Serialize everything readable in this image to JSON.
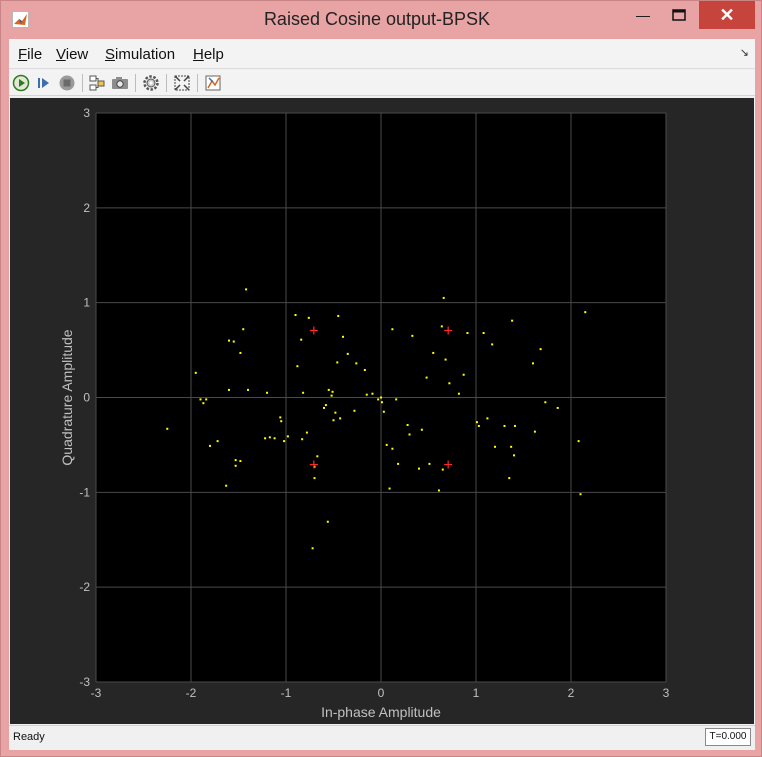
{
  "window": {
    "title": "Raised Cosine output-BPSK",
    "minimize_glyph": "—",
    "close_glyph": "✕"
  },
  "menu": {
    "items": [
      {
        "label": "File",
        "mnemonic": "F"
      },
      {
        "label": "View",
        "mnemonic": "V"
      },
      {
        "label": "Simulation",
        "mnemonic": "S"
      },
      {
        "label": "Help",
        "mnemonic": "H"
      }
    ],
    "overflow_glyph": "↘"
  },
  "toolbar": {
    "icons": [
      "run-icon",
      "step-forward-icon",
      "stop-icon",
      "highlight-block-icon",
      "snapshot-icon",
      "settings-gear-icon",
      "autoscale-icon",
      "signal-selector-icon"
    ]
  },
  "status": {
    "text": "Ready",
    "time": "T=0.000"
  },
  "colors": {
    "plot_bg": "#000000",
    "figure_bg": "#262626",
    "grid": "#4a4a4a",
    "axis_text": "#c0c0c0",
    "signal_points": "#ffff00",
    "reference_points": "#ff2a2a"
  },
  "chart_data": {
    "type": "scatter",
    "title": "",
    "xlabel": "In-phase Amplitude",
    "ylabel": "Quadrature Amplitude",
    "xlim": [
      -3,
      3
    ],
    "ylim": [
      -3,
      3
    ],
    "xticks": [
      "-3",
      "-2",
      "-1",
      "0",
      "1",
      "2",
      "3"
    ],
    "yticks": [
      "3",
      "2",
      "1",
      "0",
      "-1",
      "-2",
      "-3"
    ],
    "grid": true,
    "series": [
      {
        "marker": "dot",
        "x": [
          -1.42,
          -1.45,
          -1.48,
          -1.55,
          -1.53,
          -1.4,
          -1.2,
          -1.22,
          -1.95,
          -2.25,
          -1.9,
          -1.87,
          -1.8,
          -1.84,
          -1.72,
          -1.63,
          -1.6,
          -1.53,
          -1.48,
          -1.17,
          -1.12,
          -1.06,
          -1.05,
          -1.02,
          -0.98,
          -0.9,
          -0.84,
          -0.82,
          -0.78,
          -0.76,
          -0.7,
          -0.88,
          -0.83,
          -0.72,
          -0.67,
          -0.6,
          -0.58,
          -0.55,
          -0.52,
          -0.51,
          -0.48,
          -0.46,
          -0.45,
          -0.43,
          -0.4,
          -0.35,
          -0.28,
          -0.26,
          -0.17,
          -0.15,
          -0.09,
          -0.03,
          0.0,
          0.01,
          0.03,
          0.06,
          0.09,
          0.12,
          0.16,
          0.18,
          0.28,
          0.3,
          0.33,
          0.4,
          0.43,
          0.48,
          0.51,
          0.55,
          0.61,
          0.64,
          0.66,
          0.68,
          0.72,
          0.82,
          0.87,
          0.91,
          1.01,
          1.03,
          1.08,
          1.12,
          1.17,
          1.2,
          1.3,
          1.35,
          1.37,
          1.38,
          1.4,
          1.41,
          1.6,
          1.62,
          1.68,
          1.73,
          1.86,
          2.08,
          2.1,
          2.15,
          -0.56,
          -0.7,
          0.12,
          0.65,
          -0.5,
          -1.6
        ],
        "y": [
          1.14,
          0.72,
          0.47,
          0.59,
          -0.72,
          0.08,
          0.05,
          -0.43,
          0.26,
          -0.33,
          -0.02,
          -0.06,
          -0.51,
          -0.02,
          -0.46,
          -0.93,
          0.08,
          -0.66,
          -0.67,
          -0.42,
          -0.43,
          -0.21,
          -0.25,
          -0.46,
          -0.41,
          0.87,
          0.61,
          0.05,
          -0.37,
          0.84,
          -0.85,
          0.33,
          -0.44,
          -1.59,
          -0.62,
          -0.11,
          -0.08,
          0.08,
          0.02,
          0.06,
          -0.16,
          0.37,
          0.86,
          -0.22,
          0.64,
          0.46,
          -0.14,
          0.36,
          0.29,
          0.03,
          0.04,
          -0.02,
          0.0,
          -0.05,
          -0.15,
          -0.5,
          -0.96,
          0.72,
          -0.02,
          -0.7,
          -0.29,
          -0.39,
          0.65,
          -0.75,
          -0.34,
          0.21,
          -0.7,
          0.47,
          -0.98,
          0.75,
          1.05,
          0.4,
          0.15,
          0.04,
          0.24,
          0.68,
          -0.26,
          -0.3,
          0.68,
          -0.22,
          0.56,
          -0.52,
          -0.3,
          -0.85,
          -0.52,
          0.81,
          -0.61,
          -0.3,
          0.36,
          -0.36,
          0.51,
          -0.05,
          -0.11,
          -0.46,
          -1.02,
          0.9,
          -1.31,
          -0.73,
          -0.54,
          -0.76,
          -0.24,
          0.6
        ]
      },
      {
        "marker": "plus",
        "x": [
          -0.707,
          0.707,
          -0.707,
          0.707
        ],
        "y": [
          0.707,
          0.707,
          -0.707,
          -0.707
        ]
      }
    ]
  }
}
